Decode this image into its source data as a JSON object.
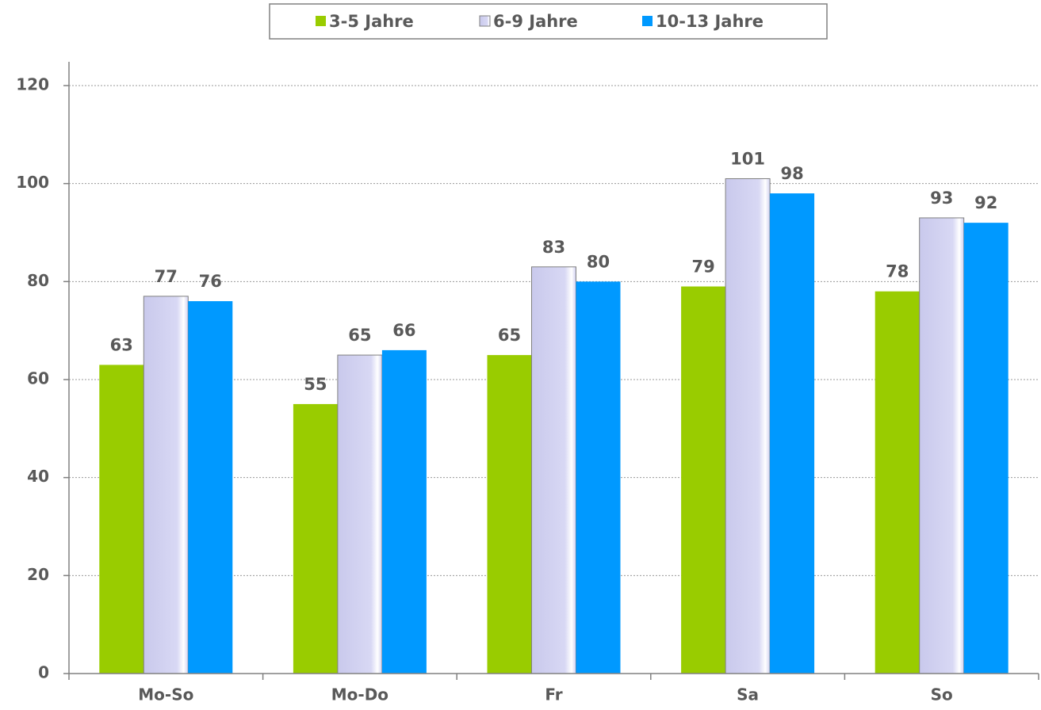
{
  "chart_data": {
    "type": "bar",
    "categories": [
      "Mo-So",
      "Mo-Do",
      "Fr",
      "Sa",
      "So"
    ],
    "series": [
      {
        "name": "3-5 Jahre",
        "color": "#99cc00",
        "values": [
          63,
          55,
          65,
          79,
          78
        ]
      },
      {
        "name": "6-9 Jahre",
        "color": "#d0d0f0",
        "values": [
          77,
          65,
          83,
          101,
          93
        ]
      },
      {
        "name": "10-13 Jahre",
        "color": "#0099ff",
        "values": [
          76,
          66,
          80,
          98,
          92
        ]
      }
    ],
    "ylim": [
      0,
      120
    ],
    "yticks": [
      0,
      20,
      40,
      60,
      80,
      100,
      120
    ],
    "grid": true,
    "legend": "top"
  }
}
